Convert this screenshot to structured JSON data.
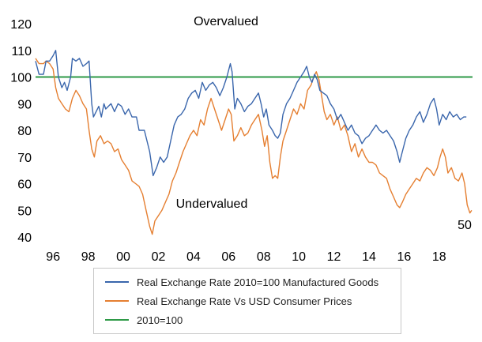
{
  "chart_data": {
    "type": "line",
    "yticks": [
      40,
      50,
      60,
      70,
      80,
      90,
      100,
      110,
      120
    ],
    "ylim": [
      40,
      120
    ],
    "xlim": [
      1995.0,
      2019.9
    ],
    "xticks": [
      {
        "label": "96",
        "x": 1996
      },
      {
        "label": "98",
        "x": 1998
      },
      {
        "label": "00",
        "x": 2000
      },
      {
        "label": "02",
        "x": 2002
      },
      {
        "label": "04",
        "x": 2004
      },
      {
        "label": "06",
        "x": 2006
      },
      {
        "label": "08",
        "x": 2008
      },
      {
        "label": "10",
        "x": 2010
      },
      {
        "label": "12",
        "x": 2012
      },
      {
        "label": "14",
        "x": 2014
      },
      {
        "label": "16",
        "x": 2016
      },
      {
        "label": "18",
        "x": 2018
      }
    ],
    "annotations": {
      "overvalued": "Overvalued",
      "undervalued": "Undervalued",
      "end_value": "50"
    },
    "series": [
      {
        "name": "Real Exchange Rate 2010=100 Manufactured Goods",
        "color": "#3a66ac",
        "points": [
          [
            1995.0,
            106
          ],
          [
            1995.2,
            101
          ],
          [
            1995.45,
            101
          ],
          [
            1995.6,
            106
          ],
          [
            1995.8,
            106
          ],
          [
            1996.0,
            108
          ],
          [
            1996.15,
            110
          ],
          [
            1996.3,
            100
          ],
          [
            1996.5,
            96
          ],
          [
            1996.65,
            98
          ],
          [
            1996.8,
            95
          ],
          [
            1997.0,
            100
          ],
          [
            1997.1,
            107
          ],
          [
            1997.3,
            106
          ],
          [
            1997.5,
            107
          ],
          [
            1997.7,
            104
          ],
          [
            1997.9,
            105
          ],
          [
            1998.05,
            106
          ],
          [
            1998.2,
            90
          ],
          [
            1998.3,
            85
          ],
          [
            1998.45,
            87
          ],
          [
            1998.6,
            89
          ],
          [
            1998.75,
            85
          ],
          [
            1998.9,
            90
          ],
          [
            1999.0,
            88
          ],
          [
            1999.3,
            90
          ],
          [
            1999.5,
            87
          ],
          [
            1999.7,
            90
          ],
          [
            1999.9,
            89
          ],
          [
            2000.1,
            86
          ],
          [
            2000.3,
            88
          ],
          [
            2000.5,
            85
          ],
          [
            2000.75,
            85
          ],
          [
            2000.9,
            80
          ],
          [
            2001.2,
            80
          ],
          [
            2001.5,
            72
          ],
          [
            2001.7,
            63
          ],
          [
            2001.9,
            66
          ],
          [
            2002.1,
            70
          ],
          [
            2002.3,
            68
          ],
          [
            2002.5,
            70
          ],
          [
            2002.7,
            76
          ],
          [
            2002.9,
            82
          ],
          [
            2003.1,
            85
          ],
          [
            2003.3,
            86
          ],
          [
            2003.5,
            88
          ],
          [
            2003.7,
            92
          ],
          [
            2003.9,
            94
          ],
          [
            2004.1,
            95
          ],
          [
            2004.3,
            92
          ],
          [
            2004.5,
            98
          ],
          [
            2004.7,
            95
          ],
          [
            2004.9,
            97
          ],
          [
            2005.1,
            98
          ],
          [
            2005.3,
            96
          ],
          [
            2005.5,
            93
          ],
          [
            2005.7,
            96
          ],
          [
            2005.9,
            100
          ],
          [
            2006.1,
            105
          ],
          [
            2006.2,
            102
          ],
          [
            2006.35,
            88
          ],
          [
            2006.5,
            92
          ],
          [
            2006.7,
            90
          ],
          [
            2006.9,
            87
          ],
          [
            2007.1,
            89
          ],
          [
            2007.3,
            90
          ],
          [
            2007.5,
            92
          ],
          [
            2007.7,
            94
          ],
          [
            2007.85,
            90
          ],
          [
            2008.0,
            85
          ],
          [
            2008.15,
            88
          ],
          [
            2008.3,
            82
          ],
          [
            2008.5,
            80
          ],
          [
            2008.65,
            78
          ],
          [
            2008.8,
            77
          ],
          [
            2008.95,
            79
          ],
          [
            2009.1,
            86
          ],
          [
            2009.3,
            90
          ],
          [
            2009.5,
            92
          ],
          [
            2009.7,
            95
          ],
          [
            2009.9,
            98
          ],
          [
            2010.1,
            100
          ],
          [
            2010.3,
            102
          ],
          [
            2010.45,
            104
          ],
          [
            2010.6,
            100
          ],
          [
            2010.75,
            98
          ],
          [
            2010.9,
            101
          ],
          [
            2011.05,
            99
          ],
          [
            2011.2,
            95
          ],
          [
            2011.4,
            94
          ],
          [
            2011.6,
            93
          ],
          [
            2011.8,
            90
          ],
          [
            2012.0,
            88
          ],
          [
            2012.2,
            84
          ],
          [
            2012.4,
            86
          ],
          [
            2012.6,
            83
          ],
          [
            2012.8,
            80
          ],
          [
            2013.0,
            82
          ],
          [
            2013.2,
            79
          ],
          [
            2013.4,
            78
          ],
          [
            2013.6,
            75
          ],
          [
            2013.8,
            77
          ],
          [
            2014.0,
            78
          ],
          [
            2014.2,
            80
          ],
          [
            2014.4,
            82
          ],
          [
            2014.6,
            80
          ],
          [
            2014.8,
            79
          ],
          [
            2015.0,
            80
          ],
          [
            2015.2,
            78
          ],
          [
            2015.4,
            76
          ],
          [
            2015.6,
            72
          ],
          [
            2015.75,
            68
          ],
          [
            2015.9,
            72
          ],
          [
            2016.1,
            77
          ],
          [
            2016.3,
            80
          ],
          [
            2016.5,
            82
          ],
          [
            2016.7,
            85
          ],
          [
            2016.9,
            87
          ],
          [
            2017.1,
            83
          ],
          [
            2017.3,
            86
          ],
          [
            2017.5,
            90
          ],
          [
            2017.7,
            92
          ],
          [
            2017.85,
            88
          ],
          [
            2018.0,
            82
          ],
          [
            2018.2,
            86
          ],
          [
            2018.4,
            84
          ],
          [
            2018.6,
            87
          ],
          [
            2018.8,
            85
          ],
          [
            2019.0,
            86
          ],
          [
            2019.2,
            84
          ],
          [
            2019.4,
            85
          ],
          [
            2019.55,
            85
          ]
        ]
      },
      {
        "name": "Real Exchange Rate Vs USD Consumer Prices",
        "color": "#e57f31",
        "points": [
          [
            1995.0,
            107
          ],
          [
            1995.2,
            105
          ],
          [
            1995.45,
            105
          ],
          [
            1995.6,
            106
          ],
          [
            1995.8,
            105
          ],
          [
            1996.0,
            103
          ],
          [
            1996.15,
            96
          ],
          [
            1996.3,
            92
          ],
          [
            1996.5,
            90
          ],
          [
            1996.7,
            88
          ],
          [
            1996.9,
            87
          ],
          [
            1997.1,
            92
          ],
          [
            1997.3,
            95
          ],
          [
            1997.5,
            93
          ],
          [
            1997.7,
            90
          ],
          [
            1997.9,
            88
          ],
          [
            1998.05,
            80
          ],
          [
            1998.2,
            73
          ],
          [
            1998.35,
            70
          ],
          [
            1998.5,
            76
          ],
          [
            1998.7,
            78
          ],
          [
            1998.9,
            75
          ],
          [
            1999.1,
            76
          ],
          [
            1999.3,
            75
          ],
          [
            1999.5,
            72
          ],
          [
            1999.7,
            73
          ],
          [
            1999.9,
            69
          ],
          [
            2000.1,
            67
          ],
          [
            2000.3,
            65
          ],
          [
            2000.5,
            61
          ],
          [
            2000.7,
            60
          ],
          [
            2000.9,
            59
          ],
          [
            2001.1,
            56
          ],
          [
            2001.3,
            50
          ],
          [
            2001.5,
            44
          ],
          [
            2001.65,
            41
          ],
          [
            2001.8,
            46
          ],
          [
            2002.0,
            48
          ],
          [
            2002.2,
            50
          ],
          [
            2002.4,
            53
          ],
          [
            2002.6,
            56
          ],
          [
            2002.8,
            61
          ],
          [
            2003.0,
            64
          ],
          [
            2003.2,
            68
          ],
          [
            2003.4,
            72
          ],
          [
            2003.6,
            75
          ],
          [
            2003.8,
            78
          ],
          [
            2004.0,
            80
          ],
          [
            2004.2,
            78
          ],
          [
            2004.4,
            84
          ],
          [
            2004.6,
            82
          ],
          [
            2004.8,
            88
          ],
          [
            2005.0,
            92
          ],
          [
            2005.2,
            88
          ],
          [
            2005.4,
            84
          ],
          [
            2005.6,
            80
          ],
          [
            2005.8,
            84
          ],
          [
            2006.0,
            88
          ],
          [
            2006.15,
            86
          ],
          [
            2006.3,
            76
          ],
          [
            2006.5,
            78
          ],
          [
            2006.7,
            81
          ],
          [
            2006.9,
            78
          ],
          [
            2007.1,
            79
          ],
          [
            2007.3,
            82
          ],
          [
            2007.5,
            84
          ],
          [
            2007.7,
            86
          ],
          [
            2007.9,
            80
          ],
          [
            2008.05,
            74
          ],
          [
            2008.2,
            78
          ],
          [
            2008.35,
            68
          ],
          [
            2008.5,
            62
          ],
          [
            2008.65,
            63
          ],
          [
            2008.8,
            62
          ],
          [
            2008.95,
            70
          ],
          [
            2009.1,
            76
          ],
          [
            2009.3,
            80
          ],
          [
            2009.5,
            84
          ],
          [
            2009.7,
            88
          ],
          [
            2009.9,
            86
          ],
          [
            2010.1,
            90
          ],
          [
            2010.3,
            88
          ],
          [
            2010.5,
            95
          ],
          [
            2010.7,
            97
          ],
          [
            2010.85,
            100
          ],
          [
            2011.0,
            102
          ],
          [
            2011.15,
            99
          ],
          [
            2011.3,
            93
          ],
          [
            2011.45,
            87
          ],
          [
            2011.6,
            84
          ],
          [
            2011.8,
            86
          ],
          [
            2012.0,
            82
          ],
          [
            2012.2,
            85
          ],
          [
            2012.4,
            80
          ],
          [
            2012.6,
            82
          ],
          [
            2012.8,
            78
          ],
          [
            2013.0,
            72
          ],
          [
            2013.2,
            75
          ],
          [
            2013.4,
            70
          ],
          [
            2013.6,
            73
          ],
          [
            2013.8,
            70
          ],
          [
            2014.0,
            68
          ],
          [
            2014.2,
            68
          ],
          [
            2014.4,
            67
          ],
          [
            2014.6,
            64
          ],
          [
            2014.8,
            63
          ],
          [
            2015.0,
            62
          ],
          [
            2015.2,
            58
          ],
          [
            2015.4,
            55
          ],
          [
            2015.6,
            52
          ],
          [
            2015.75,
            51
          ],
          [
            2015.9,
            53
          ],
          [
            2016.1,
            56
          ],
          [
            2016.3,
            58
          ],
          [
            2016.5,
            60
          ],
          [
            2016.7,
            62
          ],
          [
            2016.9,
            61
          ],
          [
            2017.1,
            64
          ],
          [
            2017.3,
            66
          ],
          [
            2017.5,
            65
          ],
          [
            2017.7,
            63
          ],
          [
            2017.9,
            66
          ],
          [
            2018.05,
            70
          ],
          [
            2018.2,
            73
          ],
          [
            2018.35,
            70
          ],
          [
            2018.5,
            64
          ],
          [
            2018.7,
            66
          ],
          [
            2018.9,
            62
          ],
          [
            2019.1,
            61
          ],
          [
            2019.3,
            64
          ],
          [
            2019.45,
            60
          ],
          [
            2019.6,
            52
          ],
          [
            2019.75,
            49
          ],
          [
            2019.85,
            50
          ]
        ]
      },
      {
        "name": "2010=100",
        "color": "#2e9a47",
        "points": [
          [
            1995.0,
            100
          ],
          [
            2019.9,
            100
          ]
        ]
      }
    ]
  }
}
